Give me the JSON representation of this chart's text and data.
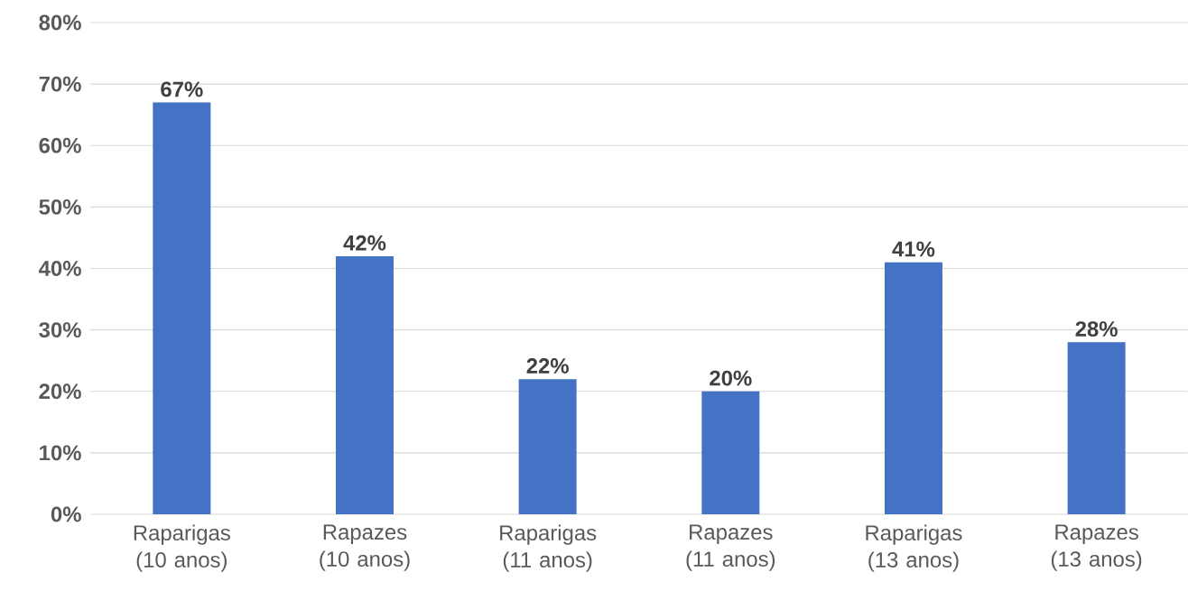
{
  "chart_data": {
    "type": "bar",
    "categories": [
      "Raparigas (10 anos)",
      "Rapazes (10 anos)",
      "Raparigas (11 anos)",
      "Rapazes (11 anos)",
      "Raparigas (13 anos)",
      "Rapazes (13 anos)"
    ],
    "values": [
      67,
      42,
      22,
      20,
      41,
      28
    ],
    "value_labels": [
      "67%",
      "42%",
      "22%",
      "20%",
      "41%",
      "28%"
    ],
    "color": "#4472c4",
    "ylim": [
      0,
      80
    ],
    "yticks": [
      {
        "value": 0,
        "label": "0%"
      },
      {
        "value": 10,
        "label": "10%"
      },
      {
        "value": 20,
        "label": "20%"
      },
      {
        "value": 30,
        "label": "30%"
      },
      {
        "value": 40,
        "label": "40%"
      },
      {
        "value": 50,
        "label": "50%"
      },
      {
        "value": 60,
        "label": "60%"
      },
      {
        "value": 70,
        "label": "70%"
      },
      {
        "value": 80,
        "label": "80%"
      }
    ],
    "grid": "y"
  }
}
